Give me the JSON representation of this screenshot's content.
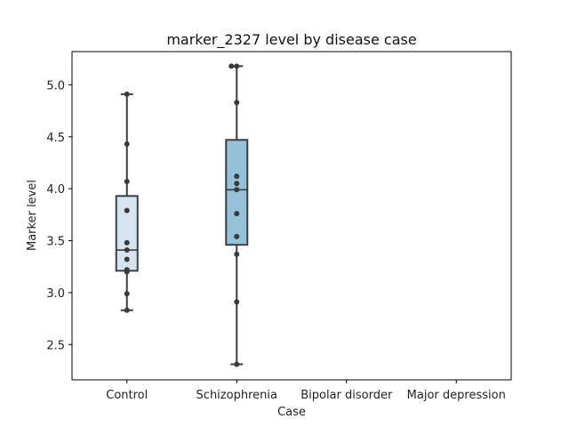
{
  "chart_data": {
    "type": "box",
    "title": "marker_2327 level by disease case",
    "xlabel": "Case",
    "ylabel": "Marker level",
    "categories": [
      "Control",
      "Schizophrenia",
      "Bipolar disorder",
      "Major depression"
    ],
    "ylim": [
      2.16,
      5.32
    ],
    "yticks": [
      2.5,
      3.0,
      3.5,
      4.0,
      4.5,
      5.0
    ],
    "ytick_labels": [
      "2.5",
      "3.0",
      "3.5",
      "4.0",
      "4.5",
      "5.0"
    ],
    "grid": false,
    "colors": {
      "Control": "#d6e3f0",
      "Schizophrenia": "#97c1d8",
      "box_edge": "#3a3f45",
      "points": "#3a3a3a"
    },
    "boxes": [
      {
        "category": "Control",
        "whisker_low": 2.83,
        "q1": 3.21,
        "median": 3.41,
        "q3": 3.93,
        "whisker_high": 4.91
      },
      {
        "category": "Schizophrenia",
        "whisker_low": 2.31,
        "q1": 3.46,
        "median": 3.99,
        "q3": 4.47,
        "whisker_high": 5.18
      }
    ],
    "points": [
      {
        "category": "Control",
        "values": [
          2.83,
          2.99,
          3.2,
          3.22,
          3.32,
          3.41,
          3.48,
          3.79,
          4.07,
          4.43,
          4.91
        ]
      },
      {
        "category": "Schizophrenia",
        "values": [
          2.31,
          2.91,
          3.37,
          3.54,
          3.76,
          3.99,
          4.05,
          4.12,
          4.83,
          5.18,
          5.18
        ]
      }
    ]
  }
}
